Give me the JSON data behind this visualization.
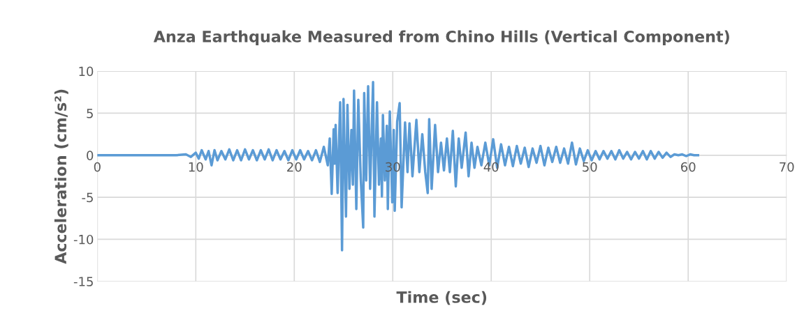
{
  "chart_data": {
    "type": "line",
    "title": "Anza Earthquake Measured from Chino Hills (Vertical Component)",
    "xlabel": "Time (sec)",
    "ylabel": "Acceleration (cm/s²)",
    "xlim": [
      0,
      70
    ],
    "xticks": [
      0,
      10,
      20,
      30,
      40,
      50,
      60,
      70
    ],
    "ylim": [
      -15,
      10
    ],
    "yticks": [
      -15,
      -10,
      -5,
      0,
      5,
      10
    ],
    "grid": true,
    "legend": false,
    "marker": "none",
    "line_style": "solid",
    "series": [
      {
        "color": "#5b9bd5",
        "x": [
          0,
          2,
          4,
          6,
          8,
          9,
          9.5,
          10,
          10.3,
          10.6,
          11,
          11.3,
          11.6,
          11.9,
          12.2,
          12.6,
          13,
          13.4,
          13.8,
          14.2,
          14.6,
          15,
          15.4,
          15.8,
          16.2,
          16.6,
          17,
          17.4,
          17.8,
          18.2,
          18.6,
          19,
          19.4,
          19.8,
          20.2,
          20.6,
          21,
          21.4,
          21.8,
          22.2,
          22.6,
          23,
          23.4,
          23.6,
          23.8,
          24.0,
          24.1,
          24.2,
          24.4,
          24.66,
          24.85,
          25.0,
          25.25,
          25.4,
          25.6,
          25.8,
          25.95,
          26.07,
          26.3,
          26.5,
          26.75,
          27.0,
          27.1,
          27.3,
          27.5,
          27.7,
          28.0,
          28.14,
          28.4,
          28.6,
          28.8,
          28.9,
          29.0,
          29.2,
          29.4,
          29.5,
          29.7,
          29.95,
          30.1,
          30.2,
          30.45,
          30.7,
          30.9,
          31.25,
          31.5,
          31.7,
          32.0,
          32.4,
          32.7,
          33.0,
          33.3,
          33.55,
          33.7,
          33.95,
          34.3,
          34.6,
          34.9,
          35.2,
          35.5,
          35.8,
          36.1,
          36.4,
          36.7,
          37.0,
          37.4,
          37.7,
          38.0,
          38.3,
          38.6,
          39.0,
          39.4,
          39.8,
          40.2,
          40.6,
          41,
          41.4,
          41.8,
          42.2,
          42.6,
          43,
          43.4,
          43.8,
          44.2,
          44.6,
          45,
          45.4,
          45.8,
          46.2,
          46.6,
          47,
          47.4,
          47.8,
          48.2,
          48.6,
          49,
          49.4,
          49.8,
          50.2,
          50.6,
          51,
          51.4,
          51.8,
          52.2,
          52.6,
          53,
          53.4,
          53.8,
          54.2,
          54.6,
          55,
          55.4,
          55.8,
          56.2,
          56.6,
          57,
          57.4,
          57.8,
          58.2,
          58.6,
          59,
          59.4,
          59.8,
          60.2,
          60.6,
          61
        ],
        "values": [
          0,
          0,
          0,
          0,
          0,
          0.1,
          -0.2,
          0.3,
          -0.4,
          0.6,
          -0.5,
          0.5,
          -1.2,
          0.6,
          -0.6,
          0.5,
          -0.5,
          0.7,
          -0.6,
          0.6,
          -0.6,
          0.7,
          -0.5,
          0.6,
          -0.6,
          0.6,
          -0.5,
          0.7,
          -0.6,
          0.6,
          -0.5,
          0.5,
          -0.6,
          0.6,
          -0.5,
          0.6,
          -0.5,
          0.5,
          -0.6,
          0.6,
          -0.8,
          1.0,
          -1.2,
          2.0,
          -4.6,
          3.1,
          -1.0,
          3.6,
          -4.5,
          6.3,
          -11.3,
          6.7,
          -7.3,
          6.0,
          -4.0,
          3.0,
          -3.5,
          7.7,
          -6.4,
          6.6,
          -2.8,
          -8.6,
          7.4,
          -3.0,
          8.2,
          -4.0,
          8.7,
          -7.3,
          6.3,
          -3.5,
          2.0,
          -4.9,
          4.8,
          -3.0,
          3.5,
          -6.4,
          5.2,
          -5.6,
          3.0,
          -6.6,
          4.0,
          6.2,
          -6.2,
          3.9,
          -2.0,
          3.8,
          -2.5,
          4.2,
          -2.0,
          2.5,
          -2.0,
          -4.5,
          4.3,
          -4.0,
          3.6,
          -2.0,
          1.5,
          -1.8,
          2.0,
          -2.0,
          2.9,
          -3.7,
          2.0,
          -1.5,
          2.7,
          -2.5,
          1.5,
          -1.5,
          1.0,
          -1.2,
          1.5,
          -1.2,
          1.9,
          -1.5,
          1.3,
          -1.2,
          1.0,
          -1.3,
          1.1,
          -1.0,
          0.9,
          -1.4,
          0.8,
          -0.9,
          1.1,
          -1.2,
          0.9,
          -0.8,
          1.0,
          -0.9,
          0.8,
          -1.0,
          1.5,
          -1.1,
          0.8,
          -0.7,
          0.6,
          -0.6,
          0.5,
          -0.5,
          0.5,
          -0.4,
          0.5,
          -0.5,
          0.6,
          -0.4,
          0.4,
          -0.5,
          0.4,
          -0.4,
          0.5,
          -0.5,
          0.5,
          -0.4,
          0.4,
          -0.3,
          0.3,
          -0.2,
          0.1,
          0,
          0.1,
          -0.1,
          0.1,
          0,
          0
        ]
      }
    ]
  }
}
